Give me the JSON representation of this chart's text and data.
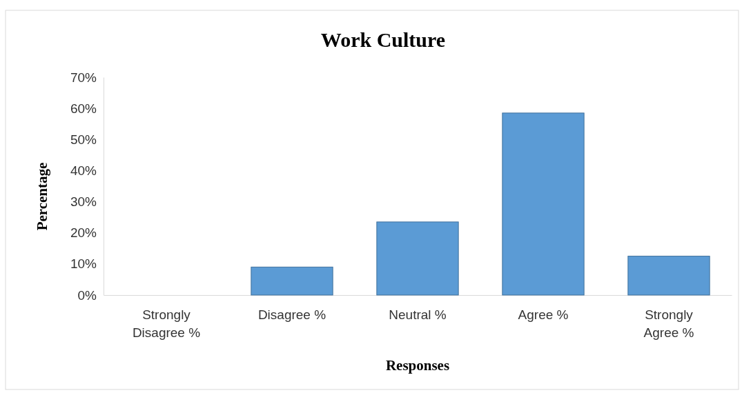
{
  "chart_data": {
    "type": "bar",
    "title": "Work Culture",
    "xlabel": "Responses",
    "ylabel": "Percentage",
    "categories": [
      "Strongly Disagree %",
      "Disagree %",
      "Neutral %",
      "Agree %",
      "Strongly Agree %"
    ],
    "values": [
      0,
      9,
      23.5,
      58.5,
      12.5
    ],
    "color": "#5b9bd5",
    "ylim": [
      0,
      70
    ],
    "yticks": [
      {
        "value": 0,
        "label": "0%"
      },
      {
        "value": 10,
        "label": "10%"
      },
      {
        "value": 20,
        "label": "20%"
      },
      {
        "value": 30,
        "label": "30%"
      },
      {
        "value": 40,
        "label": "40%"
      },
      {
        "value": 50,
        "label": "50%"
      },
      {
        "value": 60,
        "label": "60%"
      },
      {
        "value": 70,
        "label": "70%"
      }
    ],
    "grid": false
  }
}
